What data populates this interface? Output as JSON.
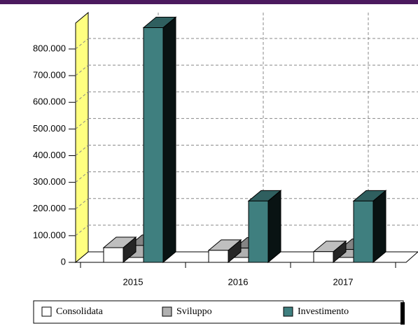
{
  "chart_data": {
    "type": "bar3d",
    "categories": [
      "2015",
      "2016",
      "2017"
    ],
    "series": [
      {
        "name": "Consolidata",
        "color": "#ffffff",
        "values": [
          55000,
          45000,
          40000
        ]
      },
      {
        "name": "Sviluppo",
        "color": "#b0b0b0",
        "values": [
          45000,
          35000,
          30000
        ]
      },
      {
        "name": "Investimento",
        "color": "#3f7f7f",
        "values": [
          880000,
          230000,
          230000
        ]
      }
    ],
    "ylim": [
      0,
      800000
    ],
    "yticks": [
      0,
      {
        "value": 100000,
        "label": "100.000"
      },
      {
        "value": 200000,
        "label": "200.000"
      },
      {
        "value": 300000,
        "label": "300.000"
      },
      {
        "value": 400000,
        "label": "400.000"
      },
      {
        "value": 500000,
        "label": "500.000"
      },
      {
        "value": 600000,
        "label": "600.000"
      },
      {
        "value": 700000,
        "label": "700.000"
      },
      {
        "value": 800000,
        "label": "800.000"
      }
    ],
    "grid": true
  }
}
